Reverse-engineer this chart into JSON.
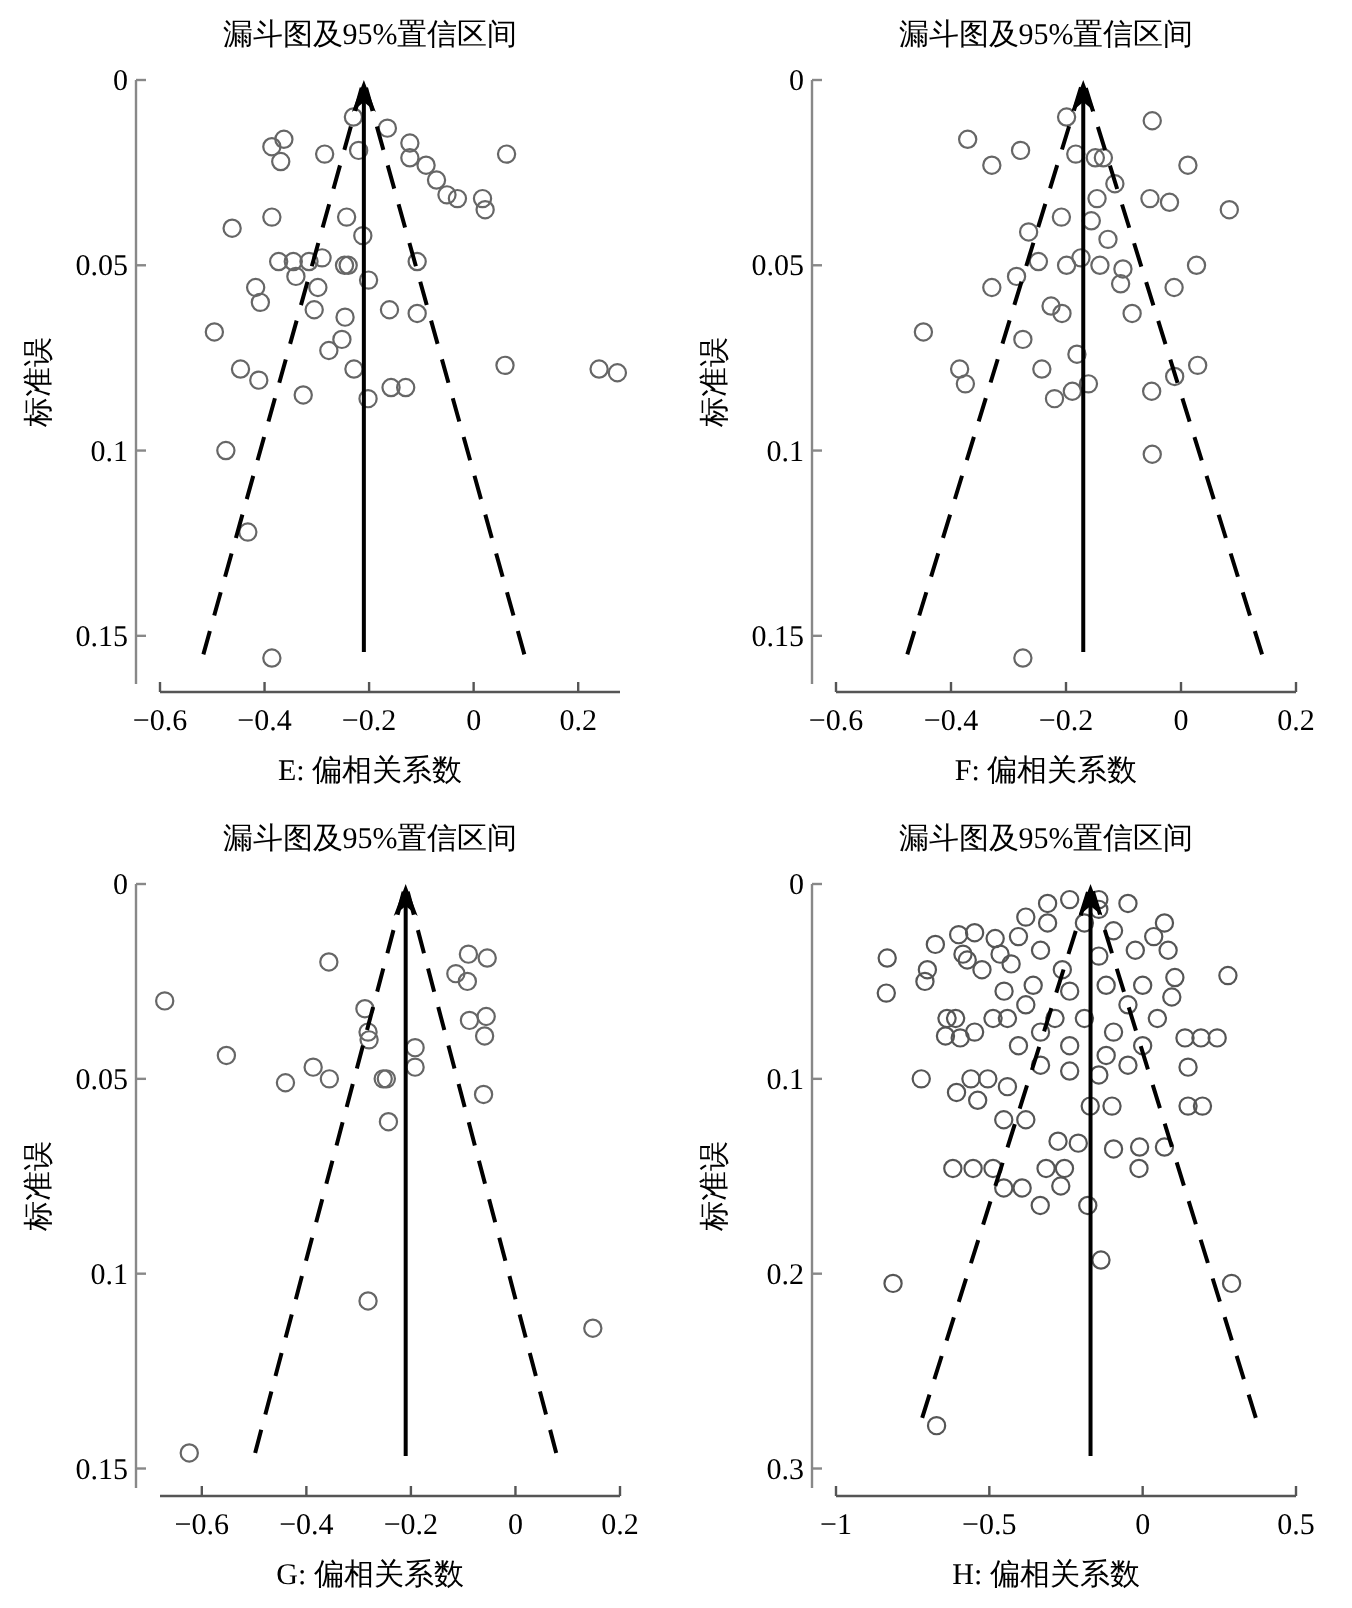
{
  "chart_data": [
    {
      "type": "scatter",
      "title": "漏斗图及95%置信区间",
      "xlabel": "E: 偏相关系数",
      "ylabel": "标准误",
      "xlim": [
        -0.6,
        0.28
      ],
      "ylim": [
        0.163,
        0
      ],
      "xticks": [
        {
          "value": -0.6,
          "label": "−0.6"
        },
        {
          "value": -0.4,
          "label": "−0.4"
        },
        {
          "value": -0.2,
          "label": "−0.2"
        },
        0,
        0.2
      ],
      "yticks": [
        0,
        0.05,
        0.1,
        0.15
      ],
      "ref_lines": [
        {
          "axis": "x",
          "value": -0.21,
          "color": "#000000"
        }
      ],
      "series": [
        {
          "type": "scatter",
          "marker": "circle",
          "color": "#666666",
          "x": [
            -0.23,
            -0.165,
            -0.363,
            -0.386,
            -0.369,
            -0.285,
            -0.22,
            -0.122,
            -0.122,
            -0.091,
            -0.071,
            -0.051,
            -0.031,
            0.017,
            0.022,
            0.063,
            -0.386,
            -0.462,
            -0.243,
            -0.212,
            -0.373,
            -0.345,
            -0.315,
            -0.29,
            -0.34,
            -0.298,
            -0.247,
            -0.24,
            -0.201,
            -0.108,
            -0.417,
            -0.408,
            -0.305,
            -0.246,
            -0.252,
            -0.161,
            -0.108,
            -0.496,
            -0.277,
            -0.446,
            -0.411,
            -0.326,
            -0.229,
            -0.158,
            -0.13,
            -0.202,
            0.06,
            0.24,
            0.275,
            -0.474,
            -0.432,
            -0.386
          ],
          "values": [
            0.01,
            0.013,
            0.016,
            0.018,
            0.022,
            0.02,
            0.019,
            0.017,
            0.021,
            0.023,
            0.027,
            0.031,
            0.032,
            0.032,
            0.035,
            0.02,
            0.037,
            0.04,
            0.037,
            0.042,
            0.049,
            0.049,
            0.049,
            0.048,
            0.053,
            0.056,
            0.05,
            0.05,
            0.054,
            0.049,
            0.056,
            0.06,
            0.062,
            0.064,
            0.07,
            0.062,
            0.063,
            0.068,
            0.073,
            0.078,
            0.081,
            0.085,
            0.078,
            0.083,
            0.083,
            0.086,
            0.077,
            0.078,
            0.079,
            0.1,
            0.122,
            0.156
          ]
        },
        {
          "type": "line",
          "marker": "none",
          "line_style": "dashed",
          "color": "#000000",
          "x": [
            -0.517,
            -0.21,
            0.097
          ],
          "values": [
            0.155,
            0,
            0.155
          ]
        }
      ]
    },
    {
      "type": "scatter",
      "title": "漏斗图及95%置信区间",
      "xlabel": "F: 偏相关系数",
      "ylabel": "标准误",
      "xlim": [
        -0.6,
        0.2
      ],
      "ylim": [
        0.163,
        0
      ],
      "xticks": [
        {
          "value": -0.6,
          "label": "−0.6"
        },
        {
          "value": -0.4,
          "label": "−0.4"
        },
        {
          "value": -0.2,
          "label": "−0.2"
        },
        0,
        0.2
      ],
      "yticks": [
        0,
        0.05,
        0.1,
        0.15
      ],
      "ref_lines": [
        {
          "axis": "x",
          "value": -0.17,
          "color": "#000000"
        }
      ],
      "series": [
        {
          "type": "scatter",
          "marker": "circle",
          "color": "#666666",
          "x": [
            -0.199,
            -0.05,
            -0.371,
            -0.279,
            -0.329,
            -0.183,
            -0.149,
            -0.135,
            0.012,
            -0.115,
            -0.146,
            -0.054,
            -0.02,
            0.084,
            -0.208,
            -0.156,
            -0.265,
            -0.127,
            -0.248,
            -0.199,
            -0.174,
            -0.141,
            -0.101,
            -0.105,
            0.027,
            -0.012,
            -0.286,
            -0.329,
            -0.226,
            -0.207,
            -0.085,
            -0.448,
            -0.275,
            -0.181,
            -0.385,
            -0.375,
            -0.242,
            -0.161,
            -0.189,
            -0.22,
            -0.051,
            -0.011,
            0.029,
            -0.05,
            -0.275
          ],
          "values": [
            0.01,
            0.011,
            0.016,
            0.019,
            0.023,
            0.02,
            0.021,
            0.021,
            0.023,
            0.028,
            0.032,
            0.032,
            0.033,
            0.035,
            0.037,
            0.038,
            0.041,
            0.043,
            0.049,
            0.05,
            0.048,
            0.05,
            0.051,
            0.055,
            0.05,
            0.056,
            0.053,
            0.056,
            0.061,
            0.063,
            0.063,
            0.068,
            0.07,
            0.074,
            0.078,
            0.082,
            0.078,
            0.082,
            0.084,
            0.086,
            0.084,
            0.08,
            0.077,
            0.101,
            0.156
          ]
        },
        {
          "type": "line",
          "marker": "none",
          "line_style": "dashed",
          "color": "#000000",
          "x": [
            -0.476,
            -0.17,
            0.141
          ],
          "values": [
            0.155,
            0,
            0.155
          ]
        }
      ]
    },
    {
      "type": "scatter",
      "title": "漏斗图及95%置信区间",
      "xlabel": "G: 偏相关系数",
      "ylabel": "标准误",
      "xlim": [
        -0.68,
        0.2
      ],
      "ylim": [
        0.155,
        0
      ],
      "xticks": [
        {
          "value": -0.6,
          "label": "−0.6"
        },
        {
          "value": -0.4,
          "label": "−0.4"
        },
        {
          "value": -0.2,
          "label": "−0.2"
        },
        0,
        0.2
      ],
      "yticks": [
        0,
        0.05,
        0.1,
        0.15
      ],
      "ref_lines": [
        {
          "axis": "x",
          "value": -0.21,
          "color": "#000000"
        }
      ],
      "series": [
        {
          "type": "scatter",
          "marker": "circle",
          "color": "#666666",
          "x": [
            -0.671,
            -0.553,
            -0.357,
            -0.387,
            -0.356,
            -0.44,
            -0.288,
            -0.282,
            -0.28,
            -0.253,
            -0.247,
            -0.243,
            -0.192,
            -0.192,
            -0.09,
            -0.054,
            -0.114,
            -0.092,
            -0.088,
            -0.056,
            -0.059,
            -0.061,
            -0.282,
            0.148,
            -0.624
          ],
          "values": [
            0.03,
            0.044,
            0.02,
            0.047,
            0.05,
            0.051,
            0.032,
            0.038,
            0.04,
            0.05,
            0.05,
            0.061,
            0.042,
            0.047,
            0.018,
            0.019,
            0.023,
            0.025,
            0.035,
            0.034,
            0.039,
            0.054,
            0.107,
            0.114,
            0.146
          ]
        },
        {
          "type": "line",
          "marker": "none",
          "line_style": "dashed",
          "color": "#000000",
          "x": [
            -0.498,
            -0.21,
            0.078
          ],
          "values": [
            0.146,
            0,
            0.146
          ]
        }
      ]
    },
    {
      "type": "scatter",
      "title": "漏斗图及95%置信区间",
      "xlabel": "H: 偏相关系数",
      "ylabel": "标准误",
      "xlim": [
        -1,
        0.5
      ],
      "ylim": [
        0.31,
        0
      ],
      "xticks": [
        {
          "value": -1,
          "label": "−1"
        },
        {
          "value": -0.5,
          "label": "−0.5"
        },
        0,
        0.5
      ],
      "yticks": [
        0,
        0.1,
        0.2,
        0.3
      ],
      "ref_lines": [
        {
          "axis": "x",
          "value": -0.17,
          "color": "#000000"
        }
      ],
      "series": [
        {
          "type": "scatter",
          "marker": "circle",
          "color": "#555555",
          "x": [
            -0.833,
            -0.836,
            -0.722,
            -0.702,
            -0.71,
            -0.676,
            -0.638,
            -0.643,
            -0.619,
            -0.553,
            -0.488,
            -0.453,
            -0.393,
            -0.334,
            -0.315,
            -0.255,
            -0.267,
            -0.179,
            -0.136,
            -0.814,
            0.29,
            -0.672,
            0.278,
            0.243,
            0.19,
            0.138,
            0.148,
            0.195,
            0.148,
            0.071,
            -0.012,
            -0.01,
            -0.095,
            -0.1,
            -0.171,
            -0.21,
            -0.276,
            -0.453,
            -0.381,
            -0.441,
            -0.505,
            -0.56,
            -0.607,
            -0.538,
            -0.595,
            -0.548,
            -0.488,
            -0.61,
            -0.586,
            -0.548,
            -0.481,
            -0.465,
            -0.524,
            -0.572,
            -0.6,
            -0.381,
            -0.31,
            -0.238,
            -0.143,
            -0.048,
            0.071,
            0.083,
            0.105,
            0.095,
            0.048,
            0,
            -0.048,
            -0.143,
            -0.238,
            -0.333,
            -0.405,
            -0.441,
            -0.452,
            -0.429,
            -0.405,
            -0.31,
            -0.333,
            -0.262,
            -0.19,
            -0.095,
            -0.024,
            -0.143,
            -0.238,
            -0.119,
            -0.048,
            -0.286,
            -0.19,
            -0.095,
            -0.238,
            -0.333,
            -0.119,
            0,
            0.036,
            -0.357,
            -0.381,
            -0.143
          ],
          "values": [
            0.038,
            0.056,
            0.1,
            0.044,
            0.05,
            0.031,
            0.069,
            0.078,
            0.146,
            0.146,
            0.146,
            0.156,
            0.156,
            0.165,
            0.146,
            0.146,
            0.155,
            0.165,
            0.193,
            0.205,
            0.205,
            0.278,
            0.047,
            0.079,
            0.079,
            0.079,
            0.094,
            0.114,
            0.114,
            0.135,
            0.146,
            0.135,
            0.136,
            0.114,
            0.114,
            0.133,
            0.132,
            0.121,
            0.121,
            0.104,
            0.1,
            0.1,
            0.107,
            0.111,
            0.079,
            0.076,
            0.069,
            0.069,
            0.036,
            0.025,
            0.028,
            0.036,
            0.044,
            0.039,
            0.026,
            0.017,
            0.01,
            0.008,
            0.008,
            0.01,
            0.02,
            0.034,
            0.048,
            0.058,
            0.069,
            0.083,
            0.093,
            0.098,
            0.096,
            0.093,
            0.083,
            0.069,
            0.055,
            0.041,
            0.027,
            0.02,
            0.034,
            0.044,
            0.02,
            0.024,
            0.034,
            0.037,
            0.055,
            0.052,
            0.062,
            0.069,
            0.069,
            0.076,
            0.083,
            0.076,
            0.088,
            0.052,
            0.027,
            0.052,
            0.062,
            0.013
          ]
        },
        {
          "type": "line",
          "marker": "none",
          "line_style": "dashed",
          "color": "#000000",
          "x": [
            -0.719,
            -0.17,
            0.369
          ],
          "values": [
            0.274,
            0,
            0.274
          ]
        }
      ]
    }
  ]
}
